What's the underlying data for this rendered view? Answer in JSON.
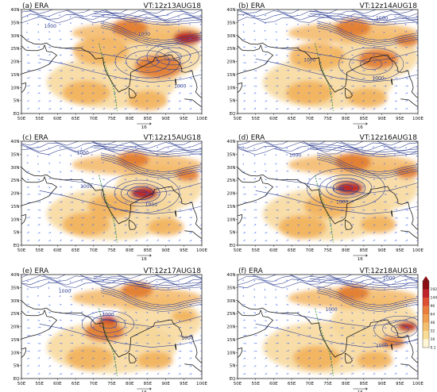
{
  "colors": {
    "coast": "#111111",
    "contour": "#2d3d8f",
    "vector": "#4466ee",
    "axis": "#222222",
    "ghat_line": "#2e8b3e",
    "shade_light": "#f7d79a",
    "shade_mid": "#f2b35c",
    "shade_strong": "#e07a2e",
    "shade_max": "#b5191d"
  },
  "axes": {
    "x_ticks": [
      "50E",
      "55E",
      "60E",
      "65E",
      "70E",
      "75E",
      "80E",
      "85E",
      "90E",
      "95E",
      "100E"
    ],
    "y_ticks": [
      "EQ",
      "5N",
      "10N",
      "15N",
      "20N",
      "25N",
      "30N",
      "35N",
      "40N"
    ],
    "lon_range": [
      50,
      100
    ],
    "lat_range": [
      0,
      40
    ]
  },
  "reference_vector": {
    "label": "16"
  },
  "contour_labels": [
    "1000",
    "1000",
    "1000"
  ],
  "panels": [
    {
      "id": "a",
      "tag": "(a) ERA",
      "time": "VT:12z13AUG18",
      "wind": 255,
      "blobs": [
        [
          72,
          24,
          14,
          1
        ],
        [
          88,
          18,
          12,
          2
        ],
        [
          80,
          33,
          9,
          2
        ],
        [
          96,
          29,
          7,
          3
        ],
        [
          68,
          8,
          12,
          1
        ],
        [
          85,
          5,
          10,
          1
        ]
      ],
      "lows": [
        [
          85,
          20,
          5
        ],
        [
          92,
          22,
          4
        ]
      ],
      "clabels": [
        [
          94,
          10
        ],
        [
          58,
          33
        ],
        [
          84,
          30
        ]
      ]
    },
    {
      "id": "b",
      "tag": "(b) ERA",
      "time": "VT:12z14AUG18",
      "wind": 255,
      "blobs": [
        [
          72,
          22,
          14,
          1
        ],
        [
          89,
          21,
          10,
          2
        ],
        [
          82,
          33,
          9,
          2
        ],
        [
          97,
          28,
          6,
          2
        ],
        [
          70,
          8,
          12,
          1
        ],
        [
          86,
          6,
          10,
          1
        ]
      ],
      "lows": [
        [
          87,
          19,
          5
        ]
      ],
      "clabels": [
        [
          89,
          13
        ],
        [
          70,
          20
        ],
        [
          90,
          36
        ]
      ]
    },
    {
      "id": "c",
      "tag": "(c) ERA",
      "time": "VT:12z15AUG18",
      "wind": 255,
      "blobs": [
        [
          84,
          20,
          7,
          3
        ],
        [
          75,
          15,
          12,
          1
        ],
        [
          81,
          33,
          8,
          2
        ],
        [
          68,
          8,
          12,
          1
        ],
        [
          96,
          27,
          6,
          2
        ],
        [
          90,
          7,
          9,
          1
        ]
      ],
      "lows": [
        [
          83,
          20,
          6
        ],
        [
          83,
          20,
          3
        ]
      ],
      "clabels": [
        [
          86,
          15
        ],
        [
          68,
          22
        ],
        [
          67,
          35
        ]
      ]
    },
    {
      "id": "d",
      "tag": "(d) ERA",
      "time": "VT:12z16AUG18",
      "wind": 255,
      "blobs": [
        [
          81,
          22,
          7,
          3
        ],
        [
          75,
          15,
          12,
          1
        ],
        [
          82,
          32,
          9,
          2
        ],
        [
          68,
          7,
          12,
          1
        ],
        [
          97,
          28,
          6,
          2
        ],
        [
          89,
          8,
          9,
          1
        ]
      ],
      "lows": [
        [
          80,
          22,
          6
        ],
        [
          80,
          22,
          3
        ]
      ],
      "clabels": [
        [
          79,
          16
        ],
        [
          78,
          21
        ],
        [
          66,
          34
        ]
      ]
    },
    {
      "id": "e",
      "tag": "(e) ERA",
      "time": "VT:12z17AUG18",
      "wind": 255,
      "blobs": [
        [
          74,
          22,
          5,
          3
        ],
        [
          73,
          18,
          10,
          2
        ],
        [
          82,
          34,
          8,
          2
        ],
        [
          69,
          8,
          12,
          1
        ],
        [
          95,
          24,
          6,
          1
        ],
        [
          87,
          7,
          9,
          1
        ]
      ],
      "lows": [
        [
          74,
          21,
          4
        ]
      ],
      "clabels": [
        [
          74,
          24
        ],
        [
          96,
          15
        ],
        [
          62,
          33
        ]
      ]
    },
    {
      "id": "f",
      "tag": "(f) ERA",
      "time": "VT:12z18AUG18",
      "wind": 255,
      "blobs": [
        [
          97,
          20,
          5,
          3
        ],
        [
          93,
          14,
          6,
          2
        ],
        [
          82,
          33,
          8,
          2
        ],
        [
          72,
          8,
          12,
          1
        ],
        [
          88,
          7,
          9,
          1
        ]
      ],
      "lows": [
        [
          95,
          19,
          4
        ]
      ],
      "clabels": [
        [
          90,
          12
        ],
        [
          76,
          26
        ],
        [
          92,
          38
        ]
      ]
    }
  ],
  "colorbar": {
    "labels": [
      "192",
      "144",
      "96",
      "64",
      "48",
      "32",
      "16",
      "0.1"
    ],
    "colors": [
      "#8b0d12",
      "#c0242a",
      "#df4f34",
      "#ea7d3c",
      "#f19e4f",
      "#f5c06e",
      "#f9dd97",
      "#fff6d6"
    ]
  }
}
